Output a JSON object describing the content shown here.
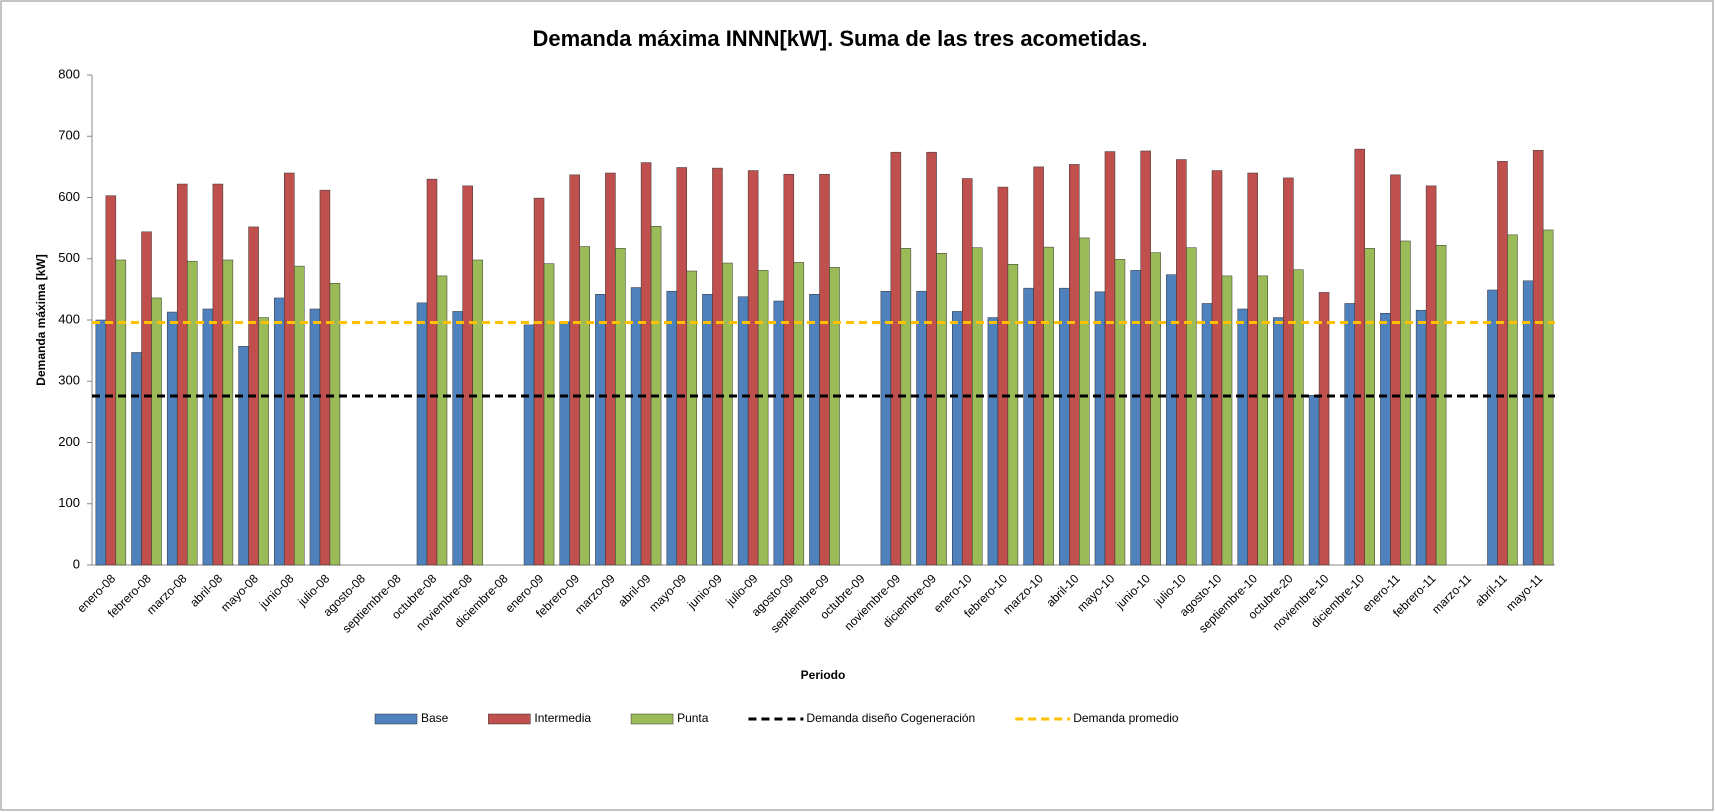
{
  "chart_data": {
    "type": "bar",
    "title": "Demanda máxima INNN[kW]. Suma de las tres acometidas.",
    "y_label": "Demanda máxima [kW]",
    "x_label": "Periodo",
    "categories": [
      "enero-08",
      "febrero-08",
      "marzo-08",
      "abril-08",
      "mayo-08",
      "junio-08",
      "julio-08",
      "agosto-08",
      "septiembre-08",
      "octubre-08",
      "noviembre-08",
      "diciembre-08",
      "enero-09",
      "febrero-09",
      "marzo-09",
      "abril-09",
      "mayo-09",
      "junio-09",
      "julio-09",
      "agosto-09",
      "septiembre-09",
      "octubre-09",
      "noviembre-09",
      "diciembre-09",
      "enero-10",
      "febrero-10",
      "marzo-10",
      "abril-10",
      "mayo-10",
      "junio-10",
      "julio-10",
      "agosto-10",
      "septiembre-10",
      "octubre-20",
      "noviembre-10",
      "diciembre-10",
      "enero-11",
      "febrero-11",
      "marzo-11",
      "abril-11",
      "mayo-11"
    ],
    "series": [
      {
        "name": "Base",
        "color": "#4f81bd",
        "values": [
          400,
          347,
          413,
          418,
          357,
          436,
          418,
          null,
          null,
          428,
          414,
          null,
          392,
          397,
          442,
          453,
          447,
          442,
          438,
          431,
          442,
          null,
          447,
          447,
          414,
          404,
          452,
          452,
          446,
          481,
          474,
          427,
          418,
          404,
          277,
          427,
          411,
          416,
          null,
          449,
          464
        ]
      },
      {
        "name": "Intermedia",
        "color": "#c0504d",
        "values": [
          603,
          544,
          622,
          622,
          552,
          640,
          612,
          null,
          null,
          630,
          619,
          null,
          599,
          637,
          640,
          657,
          649,
          648,
          644,
          638,
          638,
          null,
          674,
          674,
          631,
          617,
          650,
          654,
          675,
          676,
          662,
          644,
          640,
          632,
          445,
          679,
          637,
          619,
          null,
          659,
          677
        ]
      },
      {
        "name": "Punta",
        "color": "#9bbb59",
        "values": [
          498,
          436,
          496,
          498,
          404,
          488,
          460,
          null,
          null,
          472,
          498,
          null,
          492,
          520,
          517,
          553,
          480,
          493,
          481,
          494,
          486,
          null,
          517,
          509,
          518,
          491,
          519,
          534,
          499,
          510,
          518,
          472,
          472,
          482,
          null,
          517,
          529,
          522,
          null,
          539,
          547
        ]
      }
    ],
    "lines": [
      {
        "name": "Demanda diseño Cogeneración",
        "color": "#000000",
        "value": 276
      },
      {
        "name": "Demanda promedio",
        "color": "#ffc000",
        "value": 396
      }
    ],
    "ylim": [
      0,
      800
    ],
    "yticks": [
      0,
      100,
      200,
      300,
      400,
      500,
      600,
      700,
      800
    ],
    "grid": false,
    "legend": "bottom"
  }
}
